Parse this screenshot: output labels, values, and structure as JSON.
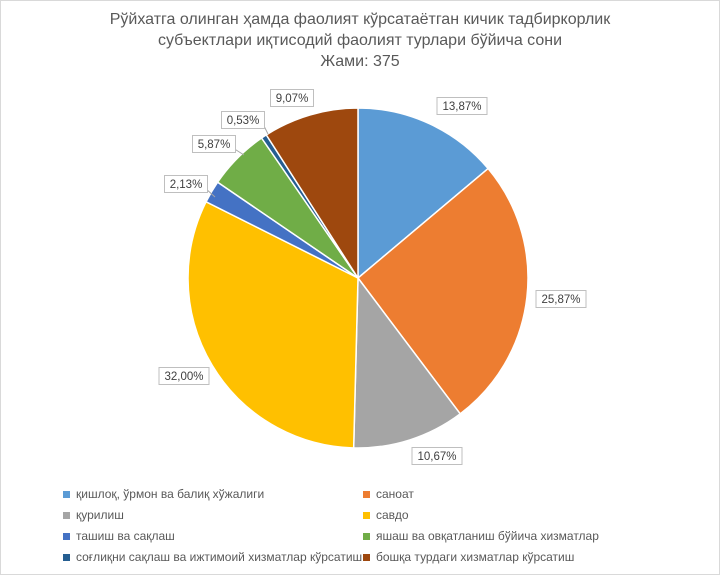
{
  "chart_data": {
    "type": "pie",
    "title_lines": [
      "Рўйхатга олинган ҳамда фаолият кўрсатаётган кичик тадбиркорлик",
      "субъектлари иқтисодий фаолият турлари бўйича сони",
      "Жами: 375"
    ],
    "legend_position": "bottom",
    "slices": [
      {
        "label": "қишлоқ, ўрмон ва балиқ хўжалиги",
        "value": 13.87,
        "display": "13,87%",
        "color": "#5b9bd5"
      },
      {
        "label": "саноат",
        "value": 25.87,
        "display": "25,87%",
        "color": "#ed7d31"
      },
      {
        "label": "қурилиш",
        "value": 10.67,
        "display": "10,67%",
        "color": "#a5a5a5"
      },
      {
        "label": "савдо",
        "value": 32.0,
        "display": "32,00%",
        "color": "#ffc000"
      },
      {
        "label": "ташиш ва сақлаш",
        "value": 2.13,
        "display": "2,13%",
        "color": "#4472c4"
      },
      {
        "label": "яшаш ва овқатланиш бўйича хизматлар",
        "value": 5.87,
        "display": "5,87%",
        "color": "#70ad47"
      },
      {
        "label": "соғлиқни сақлаш ва ижтимоий хизматлар кўрсатиш",
        "value": 0.53,
        "display": "0,53%",
        "color": "#255e91"
      },
      {
        "label": "бошқа турдаги хизматлар кўрсатиш",
        "value": 9.07,
        "display": "9,07%",
        "color": "#9e480e"
      }
    ]
  }
}
